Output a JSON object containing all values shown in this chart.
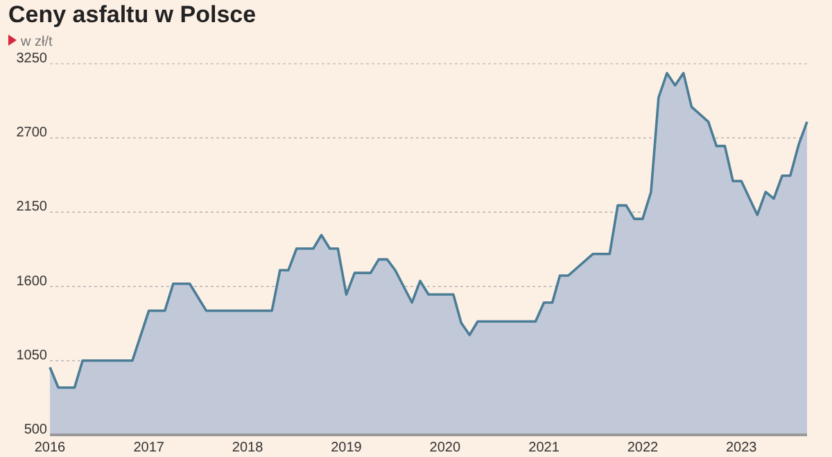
{
  "chart_data": {
    "type": "area",
    "title": "Ceny asfaltu w Polsce",
    "subtitle": "w zł/t",
    "x": [
      "2016-01",
      "2016-02",
      "2016-04",
      "2016-05",
      "2016-11",
      "2017-01",
      "2017-03",
      "2017-04",
      "2017-06",
      "2017-08",
      "2018-04",
      "2018-05",
      "2018-06",
      "2018-07",
      "2018-09",
      "2018-10",
      "2018-11",
      "2018-12",
      "2019-01",
      "2019-02",
      "2019-04",
      "2019-05",
      "2019-06",
      "2019-07",
      "2019-09",
      "2019-10",
      "2019-11",
      "2020-02",
      "2020-03",
      "2020-04",
      "2020-05",
      "2020-12",
      "2021-01",
      "2021-02",
      "2021-03",
      "2021-04",
      "2021-07",
      "2021-09",
      "2021-10",
      "2021-11",
      "2021-12",
      "2022-01",
      "2022-02",
      "2022-03",
      "2022-04",
      "2022-05",
      "2022-06",
      "2022-07",
      "2022-09",
      "2022-10",
      "2022-11",
      "2022-12",
      "2023-01",
      "2023-03",
      "2023-04",
      "2023-05",
      "2023-06",
      "2023-07",
      "2023-08",
      "2023-09"
    ],
    "series": [
      {
        "color": "#4b7d96",
        "values": [
          1000,
          850,
          850,
          1050,
          1050,
          1420,
          1420,
          1620,
          1620,
          1420,
          1420,
          1720,
          1720,
          1880,
          1880,
          1980,
          1880,
          1880,
          1540,
          1700,
          1700,
          1800,
          1800,
          1720,
          1480,
          1640,
          1540,
          1540,
          1330,
          1240,
          1340,
          1340,
          1480,
          1480,
          1680,
          1680,
          1840,
          1840,
          2200,
          2200,
          2100,
          2100,
          2300,
          3000,
          3180,
          3090,
          3180,
          2930,
          2820,
          2640,
          2640,
          2380,
          2380,
          2130,
          2300,
          2250,
          2420,
          2420,
          2650,
          2820
        ]
      }
    ],
    "xlim": [
      "2016-01",
      "2023-09"
    ],
    "xticks": [
      "2016",
      "2017",
      "2018",
      "2019",
      "2020",
      "2021",
      "2022",
      "2023"
    ],
    "ylim": [
      500,
      3250
    ],
    "yticks": [
      500,
      1050,
      1600,
      2150,
      2700,
      3250
    ],
    "grid": "y"
  }
}
